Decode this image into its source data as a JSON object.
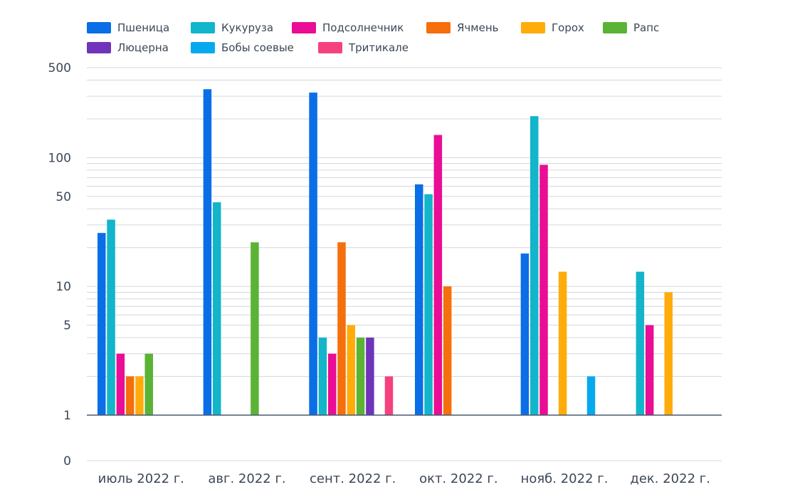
{
  "chart_data": {
    "type": "bar",
    "yscale": "log",
    "grid": true,
    "legend_position": "top-left",
    "categories": [
      "июль 2022 г.",
      "авг. 2022 г.",
      "сент. 2022 г.",
      "окт. 2022 г.",
      "нояб. 2022 г.",
      "дек. 2022 г."
    ],
    "y_ticks": [
      0,
      1,
      5,
      10,
      50,
      100,
      500
    ],
    "series": [
      {
        "name": "Пшеница",
        "color": "#0a6ee6",
        "values": [
          26,
          340,
          320,
          62,
          18,
          0
        ]
      },
      {
        "name": "Кукуруза",
        "color": "#12b5c9",
        "values": [
          33,
          45,
          4,
          52,
          210,
          13
        ]
      },
      {
        "name": "Подсолнечник",
        "color": "#ea0d95",
        "values": [
          3,
          0,
          3,
          150,
          88,
          5
        ]
      },
      {
        "name": "Ячмень",
        "color": "#f56f0c",
        "values": [
          2,
          0,
          22,
          10,
          0,
          0
        ]
      },
      {
        "name": "Горох",
        "color": "#ffac0b",
        "values": [
          2,
          0,
          5,
          0,
          13,
          9
        ]
      },
      {
        "name": "Рапс",
        "color": "#5bb335",
        "values": [
          3,
          22,
          4,
          0,
          0,
          0
        ]
      },
      {
        "name": "Люцерна",
        "color": "#6f34b9",
        "values": [
          0,
          0,
          4,
          0,
          0,
          0
        ]
      },
      {
        "name": "Бобы соевые",
        "color": "#07a9ee",
        "values": [
          0,
          0,
          0,
          0,
          2,
          0
        ]
      },
      {
        "name": "Тритикале",
        "color": "#f5427f",
        "values": [
          0,
          0,
          2,
          0,
          0,
          0
        ]
      }
    ]
  }
}
